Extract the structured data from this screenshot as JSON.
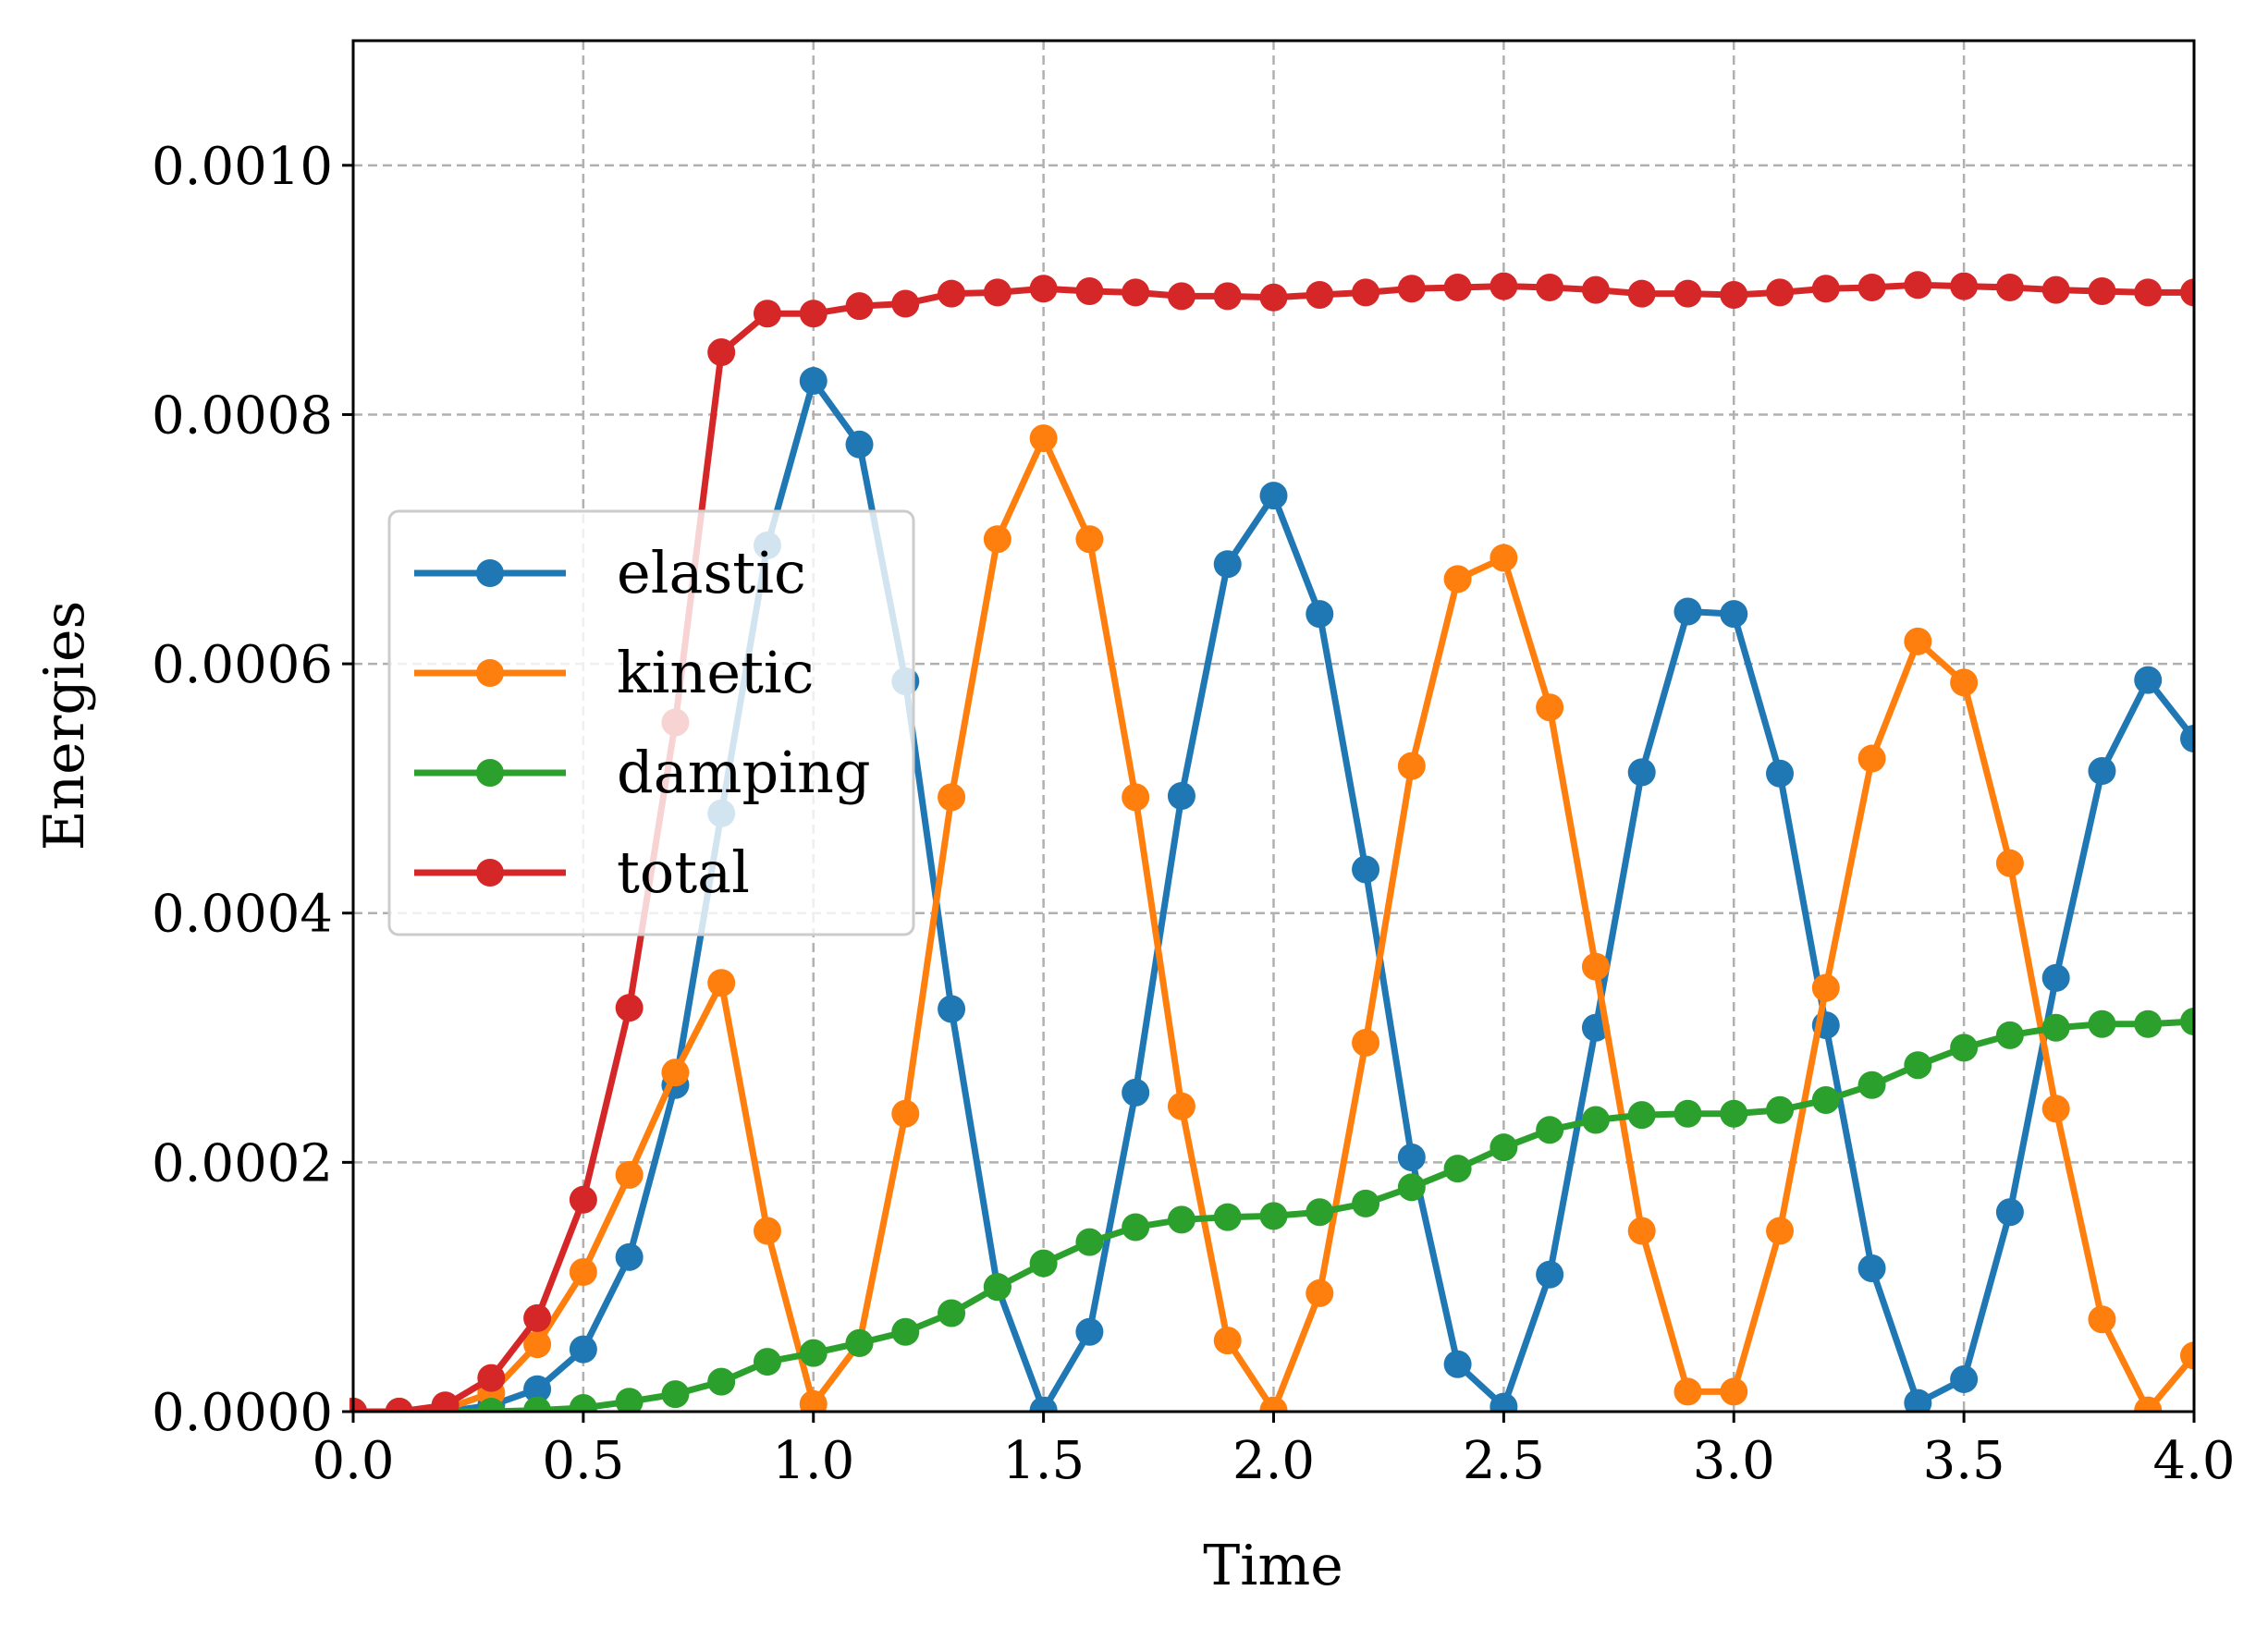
{
  "chart_data": {
    "type": "line",
    "xlabel": "Time",
    "ylabel": "Energies",
    "xlim": [
      0.0,
      4.0
    ],
    "ylim": [
      0.0,
      0.0011
    ],
    "xticks": [
      "0.0",
      "0.5",
      "1.0",
      "1.5",
      "2.0",
      "2.5",
      "3.0",
      "3.5",
      "4.0"
    ],
    "xtick_values": [
      0.0,
      0.5,
      1.0,
      1.5,
      2.0,
      2.5,
      3.0,
      3.5,
      4.0
    ],
    "yticks": [
      "0.0000",
      "0.0002",
      "0.0004",
      "0.0006",
      "0.0008",
      "0.0010"
    ],
    "ytick_values": [
      0.0,
      0.0002,
      0.0004,
      0.0006,
      0.0008,
      0.001
    ],
    "grid": true,
    "legend_position": "center-left",
    "x": [
      0.0,
      0.1,
      0.2,
      0.3,
      0.4,
      0.5,
      0.6,
      0.7,
      0.8,
      0.9,
      1.0,
      1.1,
      1.2,
      1.3,
      1.4,
      1.5,
      1.6,
      1.7,
      1.8,
      1.9,
      2.0,
      2.1,
      2.2,
      2.3,
      2.4,
      2.5,
      2.6,
      2.7,
      2.8,
      2.9,
      3.0,
      3.1,
      3.2,
      3.3,
      3.4,
      3.5,
      3.6,
      3.7,
      3.8,
      3.9,
      4.0
    ],
    "series": [
      {
        "name": "elastic",
        "color": "#1f77b4",
        "values": [
          0.0,
          0.0,
          0.0,
          5e-06,
          1.8e-05,
          5e-05,
          0.000124,
          0.000262,
          0.00048,
          0.000695,
          0.000827,
          0.000776,
          0.000586,
          0.000323,
          0.0001,
          1e-06,
          6.4e-05,
          0.000256,
          0.000494,
          0.00068,
          0.000735,
          0.00064,
          0.000435,
          0.000204,
          3.8e-05,
          4e-06,
          0.00011,
          0.000308,
          0.000513,
          0.000642,
          0.00064,
          0.000512,
          0.00031,
          0.000115,
          7e-06,
          2.6e-05,
          0.00016,
          0.000348,
          0.000514,
          0.000587,
          0.00054
        ]
      },
      {
        "name": "kinetic",
        "color": "#ff7f0e",
        "values": [
          0.0,
          0.0,
          2e-06,
          1.5e-05,
          5.4e-05,
          0.000112,
          0.00019,
          0.000272,
          0.000344,
          0.000145,
          6e-06,
          5.5e-05,
          0.000239,
          0.000493,
          0.0007,
          0.000781,
          0.0007,
          0.000493,
          0.000245,
          5.7e-05,
          1e-06,
          9.5e-05,
          0.000296,
          0.000518,
          0.000668,
          0.000685,
          0.000565,
          0.000357,
          0.000145,
          1.6e-05,
          1.6e-05,
          0.000145,
          0.00034,
          0.000524,
          0.000618,
          0.000585,
          0.00044,
          0.000243,
          7.4e-05,
          1e-06,
          4.5e-05
        ]
      },
      {
        "name": "damping",
        "color": "#2ca02c",
        "values": [
          0.0,
          0.0,
          0.0,
          0.0,
          1e-06,
          3e-06,
          8e-06,
          1.4e-05,
          2.4e-05,
          4e-05,
          4.7e-05,
          5.5e-05,
          6.4e-05,
          7.9e-05,
          0.0001,
          0.000119,
          0.000136,
          0.000148,
          0.000154,
          0.000156,
          0.000157,
          0.00016,
          0.000167,
          0.00018,
          0.000195,
          0.000212,
          0.000226,
          0.000234,
          0.000238,
          0.000239,
          0.000239,
          0.000242,
          0.00025,
          0.000262,
          0.000278,
          0.000292,
          0.000302,
          0.000308,
          0.000311,
          0.000311,
          0.000313
        ]
      },
      {
        "name": "total",
        "color": "#d62728",
        "values": [
          0.0,
          0.0,
          5e-06,
          2.7e-05,
          7.5e-05,
          0.00017,
          0.000324,
          0.000553,
          0.00085,
          0.000881,
          0.000881,
          0.000887,
          0.000889,
          0.000897,
          0.000898,
          0.000901,
          0.000899,
          0.000898,
          0.000895,
          0.000895,
          0.000894,
          0.000896,
          0.000898,
          0.000901,
          0.000902,
          0.000903,
          0.000902,
          0.0009,
          0.000897,
          0.000897,
          0.000896,
          0.000898,
          0.000901,
          0.000902,
          0.000904,
          0.000903,
          0.000902,
          0.0009,
          0.000899,
          0.000898,
          0.000898
        ]
      }
    ]
  }
}
